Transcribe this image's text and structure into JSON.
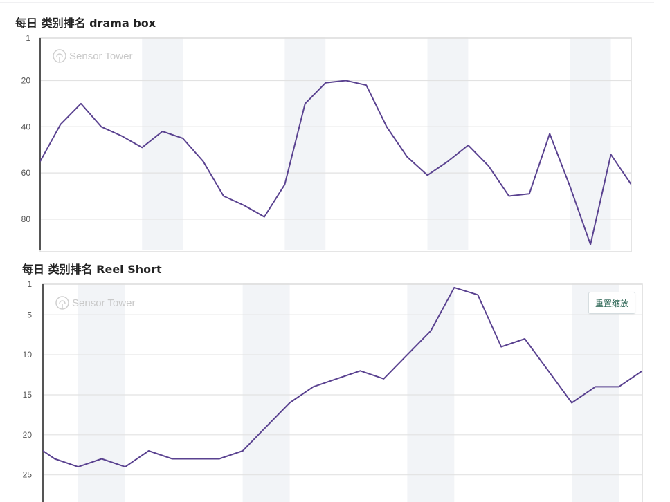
{
  "chart_data": [
    {
      "type": "line",
      "title": "每日 类别排名 drama box",
      "watermark": "Sensor Tower",
      "y_reversed": true,
      "ylim": [
        1,
        93.5
      ],
      "yticks": [
        1,
        20,
        40,
        60,
        80
      ],
      "xlim": [
        0,
        29
      ],
      "grid": true,
      "line_color": "#5a4290",
      "band_color": "#f2f4f7",
      "shaded_bands": [
        [
          5,
          7
        ],
        [
          12,
          14
        ],
        [
          19,
          21
        ],
        [
          26,
          28
        ]
      ],
      "x": [
        0,
        1,
        2,
        3,
        4,
        5,
        6,
        7,
        8,
        9,
        10,
        11,
        12,
        13,
        14,
        15,
        16,
        17,
        18,
        19,
        20,
        21,
        22,
        23,
        24,
        25,
        26,
        27,
        28,
        29
      ],
      "values": [
        55,
        39,
        30,
        40,
        44,
        49,
        42,
        45,
        55,
        70,
        74,
        79,
        65,
        30,
        21,
        20,
        22,
        40,
        53,
        61,
        55,
        48,
        57,
        70,
        69,
        43,
        66,
        91,
        52,
        65
      ]
    },
    {
      "type": "line",
      "title": "每日 类别排名 Reel Short",
      "watermark": "Sensor Tower",
      "reset_zoom_label": "重置缩放",
      "y_reversed": true,
      "ylim": [
        1,
        28.4
      ],
      "yticks": [
        1,
        5,
        10,
        15,
        20,
        25
      ],
      "xlim": [
        0.5,
        26
      ],
      "grid": true,
      "line_color": "#5a4290",
      "band_color": "#f2f4f7",
      "shaded_bands": [
        [
          2,
          4
        ],
        [
          9,
          11
        ],
        [
          16,
          18
        ],
        [
          23,
          25
        ]
      ],
      "x": [
        0,
        1,
        2,
        3,
        4,
        5,
        6,
        7,
        8,
        9,
        10,
        11,
        12,
        13,
        14,
        15,
        16,
        17,
        18,
        19,
        20,
        21,
        22,
        23,
        24,
        25,
        26
      ],
      "values": [
        21,
        23,
        24,
        23,
        24,
        22,
        23,
        23,
        23,
        22,
        19,
        16,
        14,
        13,
        12,
        13,
        10,
        7,
        1.6,
        2.5,
        9,
        8,
        12,
        16,
        14,
        14,
        12
      ]
    }
  ]
}
